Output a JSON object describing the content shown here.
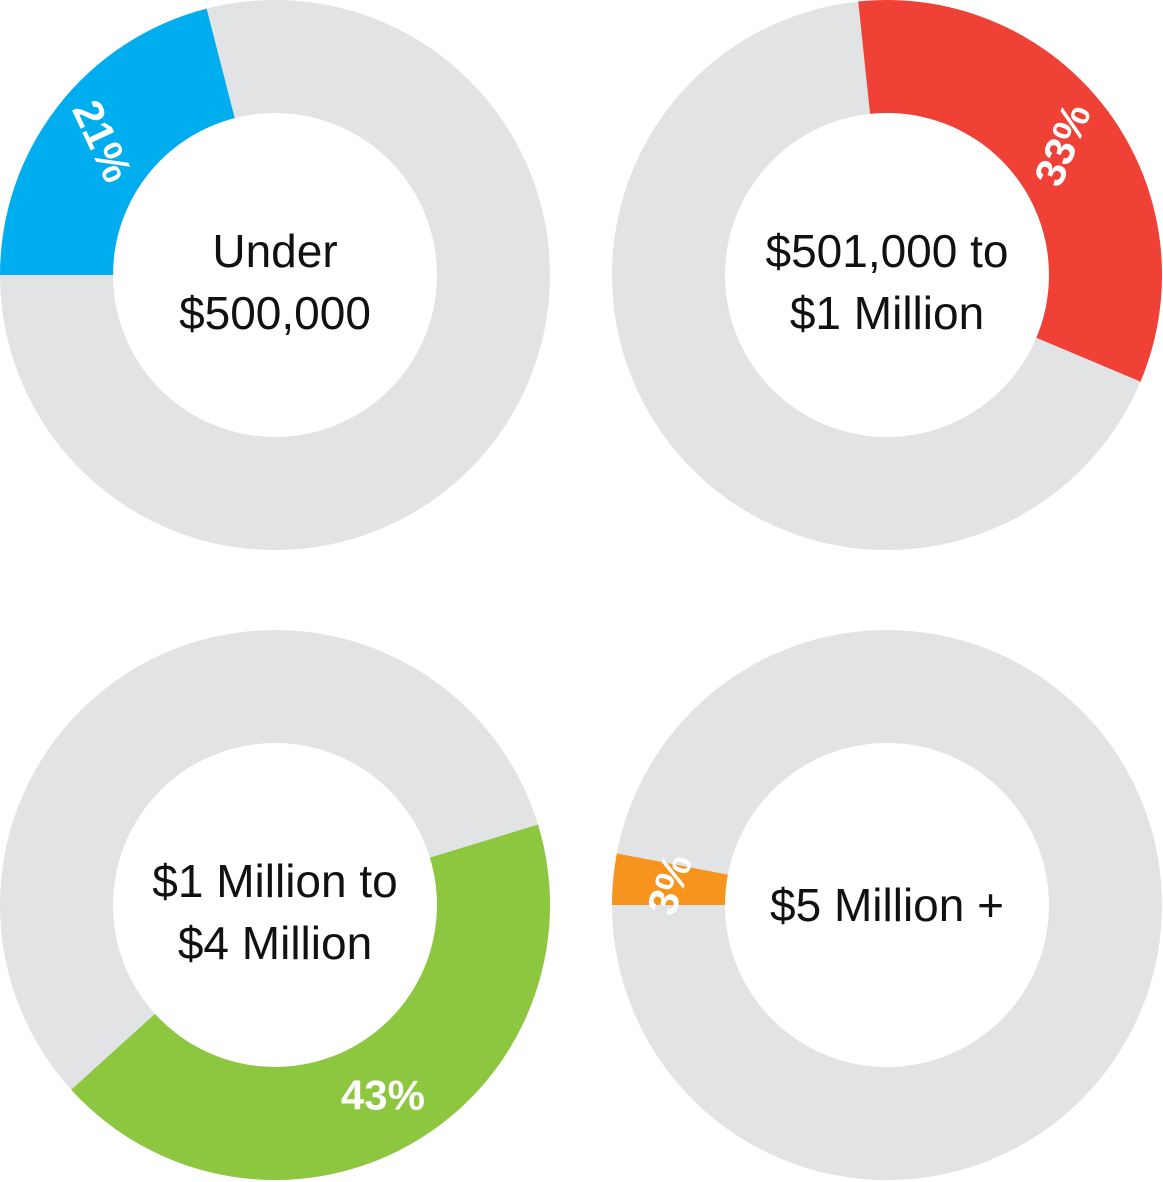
{
  "chart_data": [
    {
      "type": "pie",
      "variant": "donut",
      "center_label": [
        "Under",
        "$500,000"
      ],
      "value": 21,
      "value_label": "21%",
      "colors": {
        "segment": "#00AEEF",
        "track": "#E2E3E5"
      }
    },
    {
      "type": "pie",
      "variant": "donut",
      "center_label": [
        "$501,000 to",
        "$1 Million"
      ],
      "value": 33,
      "value_label": "33%",
      "colors": {
        "segment": "#EF4136",
        "track": "#E2E3E5"
      }
    },
    {
      "type": "pie",
      "variant": "donut",
      "center_label": [
        "$1 Million to",
        "$4 Million"
      ],
      "value": 43,
      "value_label": "43%",
      "colors": {
        "segment": "#8DC63F",
        "track": "#E2E3E5"
      }
    },
    {
      "type": "pie",
      "variant": "donut",
      "center_label": [
        "$5 Million +"
      ],
      "value": 3,
      "value_label": "3%",
      "colors": {
        "segment": "#F7941D",
        "track": "#E2E3E5"
      }
    }
  ]
}
